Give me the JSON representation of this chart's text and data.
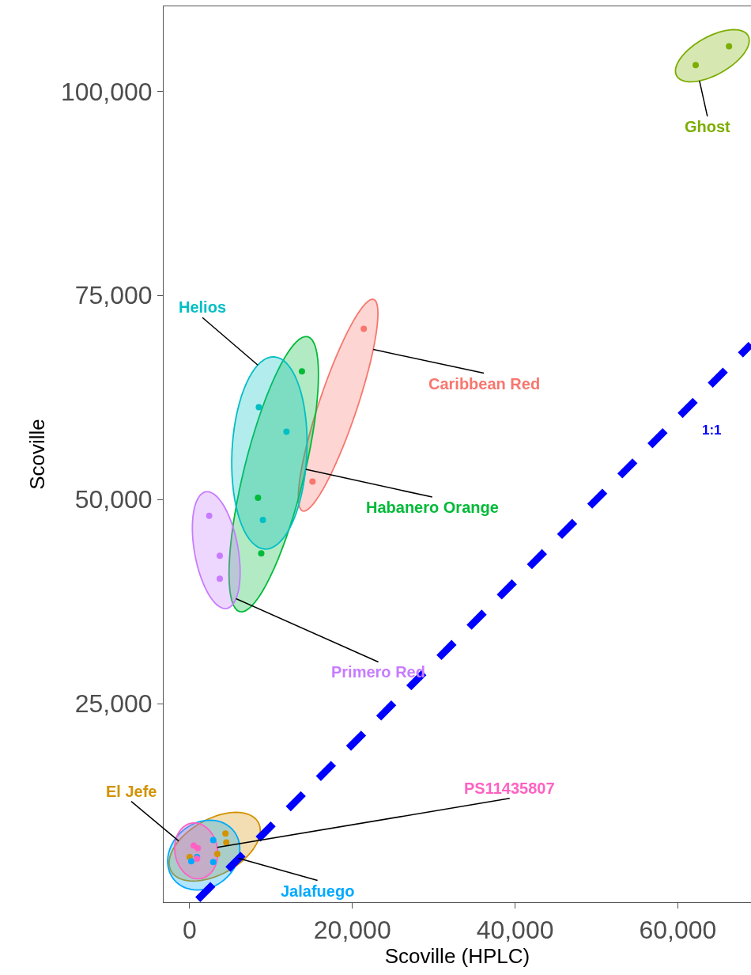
{
  "chart_data": {
    "type": "scatter",
    "xlabel": "Scoville (HPLC)",
    "ylabel": "Scoville",
    "xlim": [
      -3200,
      69000
    ],
    "ylim": [
      680,
      110400
    ],
    "xticks": [
      {
        "value": 0,
        "label": "0"
      },
      {
        "value": 20000,
        "label": "20,000"
      },
      {
        "value": 40000,
        "label": "40,000"
      },
      {
        "value": 60000,
        "label": "60,000"
      }
    ],
    "yticks": [
      {
        "value": 25000,
        "label": "25,000"
      },
      {
        "value": 50000,
        "label": "50,000"
      },
      {
        "value": 75000,
        "label": "75,000"
      },
      {
        "value": 100000,
        "label": "100,000"
      }
    ],
    "grid": false,
    "legend": false,
    "marker": "circle",
    "series": [
      {
        "name": "Caribbean Red",
        "color": "#f8766d",
        "x": [
          21400,
          15100
        ],
        "values": [
          70900,
          52200
        ]
      },
      {
        "name": "El Jefe",
        "color": "#d39200",
        "x": [
          4400,
          4500,
          0,
          3400
        ],
        "values": [
          9100,
          8000,
          6200,
          6600
        ]
      },
      {
        "name": "Ghost",
        "color": "#7cae00",
        "x": [
          62200,
          66300
        ],
        "values": [
          103200,
          105500
        ]
      },
      {
        "name": "Habanero Orange",
        "color": "#00ba38",
        "x": [
          13800,
          8400,
          8800
        ],
        "values": [
          65700,
          50200,
          43400
        ]
      },
      {
        "name": "Helios",
        "color": "#00bfc4",
        "x": [
          8500,
          11900,
          9000
        ],
        "values": [
          61300,
          58300,
          47500
        ]
      },
      {
        "name": "Jalafuego",
        "color": "#00a9ff",
        "x": [
          2900,
          2900,
          200,
          900
        ],
        "values": [
          8300,
          5600,
          5700,
          6200
        ]
      },
      {
        "name": "PS11435807",
        "color": "#ff61c3",
        "x": [
          500,
          1000,
          900
        ],
        "values": [
          7600,
          7300,
          6000
        ]
      },
      {
        "name": "Primero Red",
        "color": "#c77cff",
        "x": [
          2400,
          3700,
          3700
        ],
        "values": [
          48000,
          43100,
          40300
        ]
      },
      {
        "name": "1:1",
        "type": "line",
        "color": "#0000ff",
        "line_style": "dashed",
        "marker": "none",
        "x": [
          1000,
          69000
        ],
        "values": [
          1000,
          69000
        ]
      }
    ]
  }
}
